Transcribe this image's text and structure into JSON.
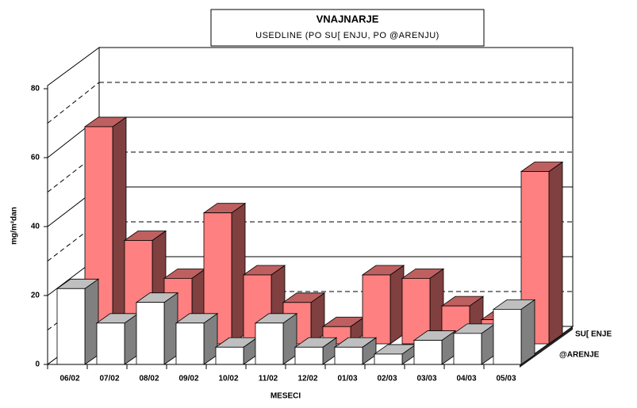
{
  "chart_data": {
    "type": "bar3d",
    "title": "VNAJNARJE",
    "subtitle": "USEDLINE (PO SU[ ENJU, PO @ARENJU)",
    "y_label": "mg/m²dan",
    "x_label": "MESECI",
    "categories": [
      "06/02",
      "07/02",
      "08/02",
      "09/02",
      "10/02",
      "11/02",
      "12/02",
      "01/03",
      "02/03",
      "03/03",
      "04/03",
      "05/03"
    ],
    "series": [
      {
        "name": "SU[ ENJE",
        "color": "#ff8080",
        "values": [
          63,
          30,
          19,
          38,
          20,
          12,
          5,
          20,
          19,
          11,
          7,
          50
        ]
      },
      {
        "name": "@ARENJE",
        "color": "#ffffff",
        "values": [
          22,
          12,
          18,
          12,
          5,
          12,
          5,
          5,
          3,
          7,
          9,
          16
        ]
      }
    ],
    "ylim": [
      0,
      80
    ],
    "yticks": [
      0,
      20,
      40,
      60,
      80
    ],
    "grid": true
  }
}
